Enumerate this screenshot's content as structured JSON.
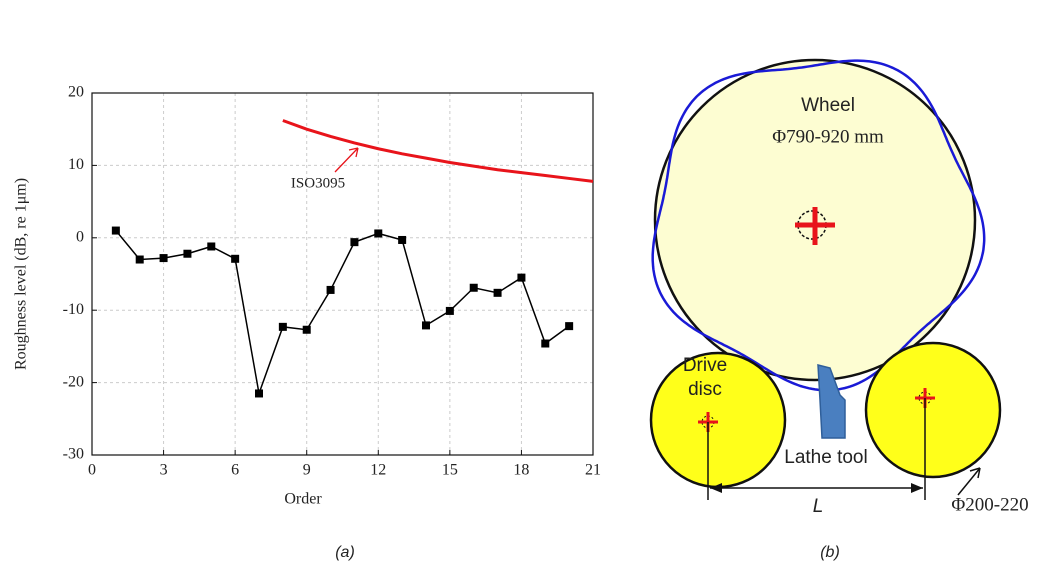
{
  "chart_data": {
    "type": "line",
    "xlabel": "Order",
    "ylabel": "Roughness level (dB, re 1μm)",
    "xlim": [
      0,
      21
    ],
    "xticks": [
      0,
      3,
      6,
      9,
      12,
      15,
      18,
      21
    ],
    "ylim": [
      -30,
      20
    ],
    "yticks": [
      -30,
      -20,
      -10,
      0,
      10,
      20
    ],
    "grid": true,
    "series": [
      {
        "color": "#000000",
        "marker": "square",
        "x": [
          1,
          2,
          3,
          4,
          5,
          6,
          7,
          8,
          9,
          10,
          11,
          12,
          13,
          14,
          15,
          16,
          17,
          18,
          19,
          20
        ],
        "values": [
          1.0,
          -3.0,
          -2.8,
          -2.2,
          -1.2,
          -2.9,
          -21.5,
          -12.3,
          -12.7,
          -7.2,
          -0.6,
          0.6,
          -0.3,
          -12.1,
          -10.1,
          -6.9,
          -7.6,
          -5.5,
          -14.6,
          -12.2
        ]
      },
      {
        "name": "ISO3095",
        "color": "#e8141b",
        "x": [
          8,
          9,
          10,
          11,
          12,
          13,
          14,
          15,
          16,
          17,
          18,
          19,
          20,
          21
        ],
        "values": [
          16.2,
          15.0,
          14.0,
          13.1,
          12.3,
          11.6,
          11.0,
          10.4,
          9.9,
          9.4,
          9.0,
          8.6,
          8.2,
          7.8
        ]
      }
    ],
    "caption": "(a)"
  },
  "diagram": {
    "wheel": "Wheel",
    "wheel_diameter": "Φ790-920 mm",
    "drive_disc": [
      "Drive",
      "disc"
    ],
    "lathe_tool": "Lathe tool",
    "distance": "L",
    "disc_diameter": "Φ200-220",
    "caption": "(b)"
  }
}
